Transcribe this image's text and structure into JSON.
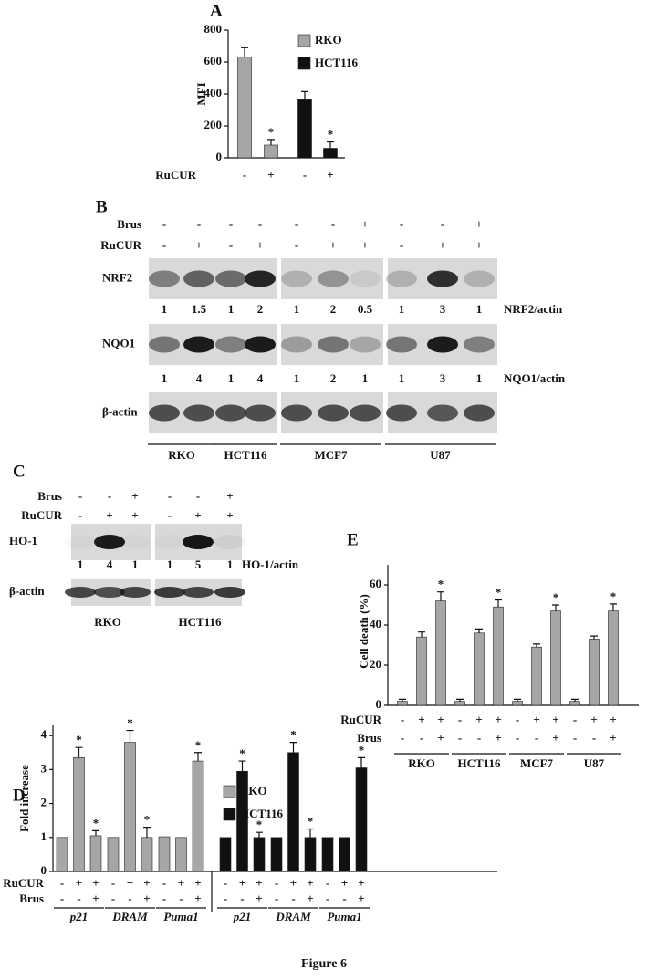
{
  "caption": "Figure 6",
  "chart_data": [
    {
      "type": "bar",
      "panel": "A",
      "ylabel": "MFI",
      "ylim": [
        0,
        800
      ],
      "yticks": [
        0,
        200,
        400,
        600,
        800
      ],
      "treatment_rows": [
        {
          "label": "RuCUR",
          "signs": [
            "-",
            "+",
            "-",
            "+"
          ]
        }
      ],
      "series": [
        {
          "name": "RKO",
          "color": "#a6a6a6",
          "values": [
            630,
            80,
            null,
            null
          ],
          "errors": [
            60,
            35,
            null,
            null
          ]
        },
        {
          "name": "HCT116",
          "color": "#111111",
          "values": [
            null,
            null,
            365,
            60
          ],
          "errors": [
            null,
            null,
            50,
            40
          ]
        }
      ],
      "annotations": [
        {
          "text": "*",
          "series": 0,
          "index": 1
        },
        {
          "text": "*",
          "series": 1,
          "index": 3
        }
      ]
    },
    {
      "type": "bar",
      "panel": "E",
      "ylabel": "Cell death (%)",
      "ylim": [
        0,
        70
      ],
      "yticks": [
        0,
        20,
        40,
        60
      ],
      "treatment_rows": [
        {
          "label": "RuCUR",
          "signs": [
            "-",
            "+",
            "+",
            "-",
            "+",
            "+",
            "-",
            "+",
            "+",
            "-",
            "+",
            "+"
          ]
        },
        {
          "label": "Brus",
          "signs": [
            "-",
            "-",
            "+",
            "-",
            "-",
            "+",
            "-",
            "-",
            "+",
            "-",
            "-",
            "+"
          ]
        }
      ],
      "groups": [
        "RKO",
        "HCT116",
        "MCF7",
        "U87"
      ],
      "series": [
        {
          "color": "#a6a6a6",
          "values": [
            2,
            34,
            52,
            2,
            36,
            49,
            2,
            29,
            47,
            2,
            33,
            47
          ],
          "errors": [
            1,
            2.5,
            4.5,
            1,
            2,
            3.5,
            1,
            1.5,
            3,
            1,
            1.5,
            3.5
          ]
        }
      ],
      "annotations": [
        {
          "text": "*",
          "series": 0,
          "index": 2
        },
        {
          "text": "*",
          "series": 0,
          "index": 5
        },
        {
          "text": "*",
          "series": 0,
          "index": 8
        },
        {
          "text": "*",
          "series": 0,
          "index": 11
        }
      ]
    },
    {
      "type": "bar",
      "panel": "D",
      "ylabel": "Fold increase",
      "ylim": [
        0,
        4.3
      ],
      "yticks": [
        0,
        1,
        2,
        3,
        4
      ],
      "treatment_rows": [
        {
          "label": "RuCUR",
          "signs": [
            "-",
            "+",
            "+",
            "-",
            "+",
            "+",
            "-",
            "+",
            "+",
            "-",
            "+",
            "+",
            "-",
            "+",
            "+",
            "-",
            "+",
            "+"
          ]
        },
        {
          "label": "Brus",
          "signs": [
            "-",
            "-",
            "+",
            "-",
            "-",
            "+",
            "-",
            "-",
            "+",
            "-",
            "-",
            "+",
            "-",
            "-",
            "+",
            "-",
            "-",
            "+"
          ]
        }
      ],
      "groups": [
        "p21",
        "DRAM",
        "Puma1",
        "p21",
        "DRAM",
        "Puma1"
      ],
      "series": [
        {
          "name": "RKO",
          "color": "#a6a6a6",
          "values": [
            1,
            3.35,
            1.05,
            1,
            3.8,
            1.0,
            1.02,
            1.0,
            3.25,
            null,
            null,
            null,
            null,
            null,
            null,
            null,
            null,
            null
          ],
          "errors": [
            null,
            0.3,
            0.15,
            null,
            0.35,
            0.3,
            null,
            null,
            0.25,
            null,
            null,
            null,
            null,
            null,
            null,
            null,
            null,
            null
          ]
        },
        {
          "name": "HCT116",
          "color": "#111111",
          "values": [
            null,
            null,
            null,
            null,
            null,
            null,
            null,
            null,
            null,
            1,
            2.95,
            1.0,
            1,
            3.5,
            1.0,
            1,
            1,
            3.05
          ],
          "errors": [
            null,
            null,
            null,
            null,
            null,
            null,
            null,
            null,
            null,
            null,
            0.3,
            0.15,
            null,
            0.3,
            0.25,
            null,
            null,
            0.3
          ]
        }
      ],
      "annotations": [
        {
          "text": "*",
          "series": 0,
          "index": 1
        },
        {
          "text": "*",
          "series": 0,
          "index": 2
        },
        {
          "text": "*",
          "series": 0,
          "index": 4
        },
        {
          "text": "*",
          "series": 0,
          "index": 5
        },
        {
          "text": "*",
          "series": 0,
          "index": 8
        },
        {
          "text": "*",
          "series": 1,
          "index": 10
        },
        {
          "text": "*",
          "series": 1,
          "index": 11
        },
        {
          "text": "*",
          "series": 1,
          "index": 13
        },
        {
          "text": "*",
          "series": 1,
          "index": 14
        },
        {
          "text": "*",
          "series": 1,
          "index": 17
        }
      ]
    }
  ],
  "blots": [
    {
      "panel": "B",
      "treatment_rows": [
        {
          "label": "Brus",
          "signs": [
            "-",
            "-",
            "-",
            "-",
            "-",
            "-",
            "+",
            "-",
            "-",
            "+"
          ]
        },
        {
          "label": "RuCUR",
          "signs": [
            "-",
            "+",
            "-",
            "+",
            "-",
            "+",
            "+",
            "-",
            "+",
            "+"
          ]
        }
      ],
      "bands": [
        {
          "label": "NRF2",
          "quant": {
            "label": "NRF2/actin",
            "values": [
              1,
              1.5,
              1,
              2,
              1,
              2,
              0.5,
              1,
              3,
              1
            ]
          }
        },
        {
          "label": "NQO1",
          "quant": {
            "label": "NQO1/actin",
            "values": [
              1,
              4,
              1,
              4,
              1,
              2,
              1,
              1,
              3,
              1
            ]
          }
        },
        {
          "label": "β-actin"
        }
      ],
      "cell_lines": [
        "RKO",
        "HCT116",
        "MCF7",
        "U87"
      ]
    },
    {
      "panel": "C",
      "treatment_rows": [
        {
          "label": "Brus",
          "signs": [
            "-",
            "-",
            "+",
            "-",
            "-",
            "+"
          ]
        },
        {
          "label": "RuCUR",
          "signs": [
            "-",
            "+",
            "+",
            "-",
            "+",
            "+"
          ]
        }
      ],
      "bands": [
        {
          "label": "HO-1",
          "quant": {
            "label": "HO-1/actin",
            "values": [
              1,
              4,
              1,
              1,
              5,
              1
            ]
          }
        },
        {
          "label": "β-actin"
        }
      ],
      "cell_lines": [
        "RKO",
        "HCT116"
      ]
    }
  ]
}
